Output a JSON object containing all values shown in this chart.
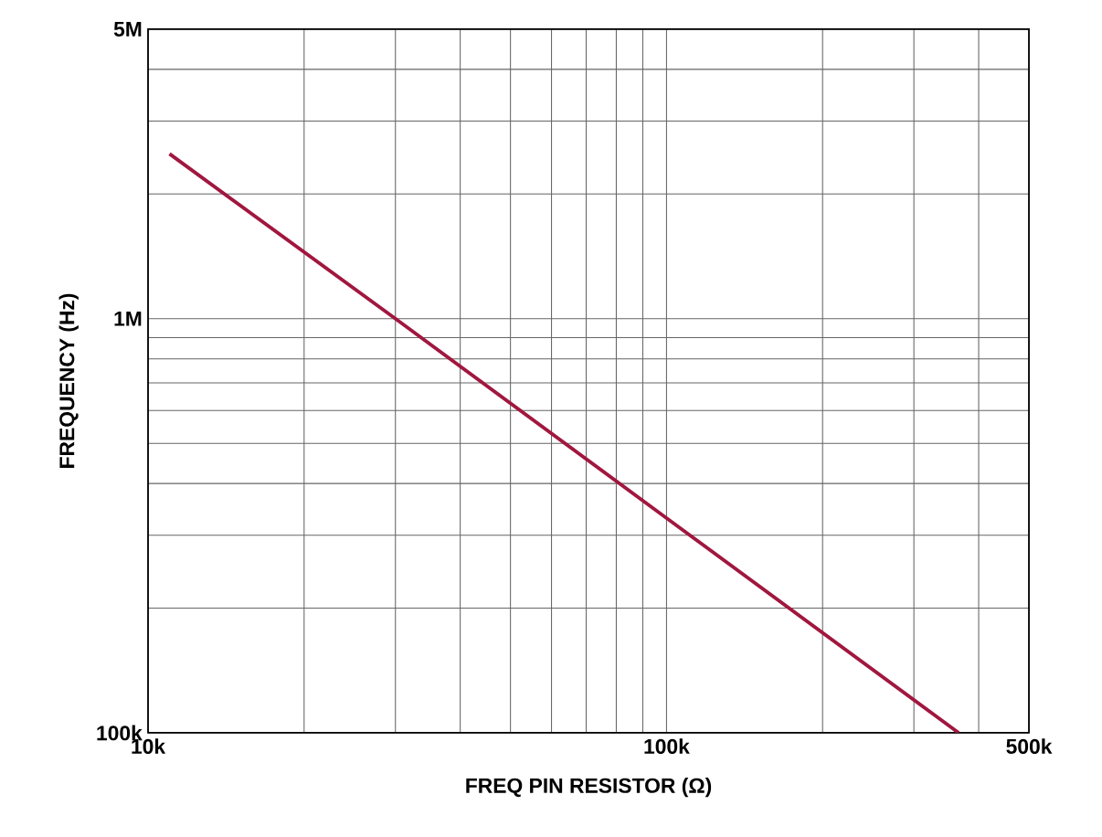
{
  "chart_data": {
    "type": "line",
    "xlabel": "FREQ PIN RESISTOR (Ω)",
    "ylabel": "FREQUENCY (Hz)",
    "log": "xy",
    "grid": true,
    "xlim": [
      10000,
      500000
    ],
    "ylim": [
      100000,
      5000000
    ],
    "xticks": [
      {
        "value": 10000,
        "label": "10k"
      },
      {
        "value": 20000,
        "label": null
      },
      {
        "value": 30000,
        "label": null
      },
      {
        "value": 40000,
        "label": null
      },
      {
        "value": 50000,
        "label": null
      },
      {
        "value": 60000,
        "label": null
      },
      {
        "value": 70000,
        "label": null
      },
      {
        "value": 80000,
        "label": null
      },
      {
        "value": 90000,
        "label": null
      },
      {
        "value": 100000,
        "label": "100k"
      },
      {
        "value": 200000,
        "label": null
      },
      {
        "value": 300000,
        "label": null
      },
      {
        "value": 400000,
        "label": null
      },
      {
        "value": 500000,
        "label": "500k"
      }
    ],
    "yticks": [
      {
        "value": 100000,
        "label": "100k"
      },
      {
        "value": 200000,
        "label": null
      },
      {
        "value": 300000,
        "label": null
      },
      {
        "value": 400000,
        "label": null
      },
      {
        "value": 500000,
        "label": null
      },
      {
        "value": 600000,
        "label": null
      },
      {
        "value": 700000,
        "label": null
      },
      {
        "value": 800000,
        "label": null
      },
      {
        "value": 900000,
        "label": null
      },
      {
        "value": 1000000,
        "label": "1M"
      },
      {
        "value": 2000000,
        "label": null
      },
      {
        "value": 3000000,
        "label": null
      },
      {
        "value": 4000000,
        "label": null
      },
      {
        "value": 5000000,
        "label": "5M"
      }
    ],
    "series": [
      {
        "color": "#a0173f",
        "x": [
          11000,
          30000,
          100000,
          366000
        ],
        "values": [
          2500000,
          1000000,
          330000,
          100000
        ]
      }
    ]
  }
}
